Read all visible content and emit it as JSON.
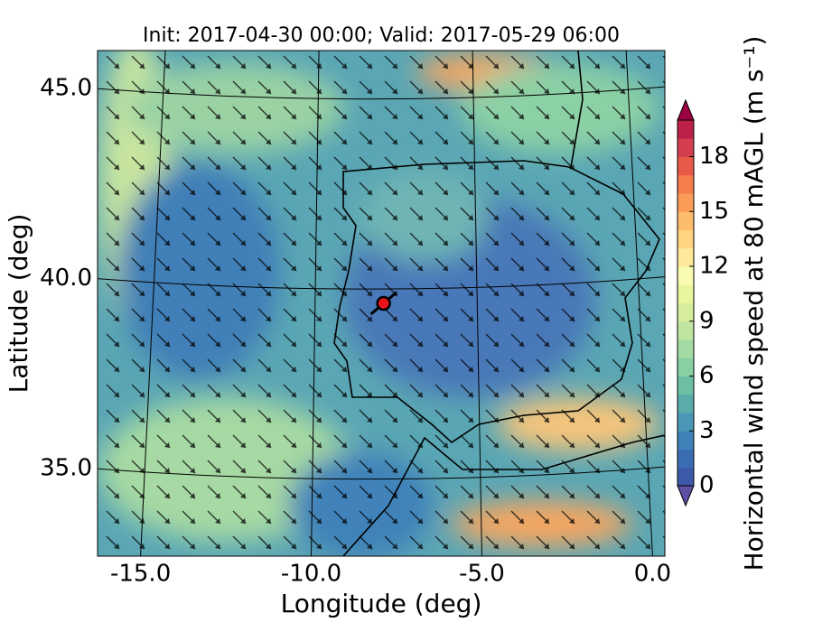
{
  "chart_data": {
    "type": "map",
    "title": "Init: 2017-04-30 00:00; Valid: 2017-05-29 06:00",
    "x_label": "Longitude (deg)",
    "y_label": "Latitude (deg)",
    "xlim": [
      -16.26,
      0.36
    ],
    "ylim": [
      32.7,
      46.0
    ],
    "xticks": [
      {
        "value": -15,
        "label": "-15.0"
      },
      {
        "value": -10,
        "label": "-10.0"
      },
      {
        "value": -5,
        "label": "-5.0"
      },
      {
        "value": 0,
        "label": "0.0"
      }
    ],
    "yticks": [
      {
        "value": 35,
        "label": "35.0"
      },
      {
        "value": 40,
        "label": "40.0"
      },
      {
        "value": 45,
        "label": "45.0"
      }
    ],
    "grid": true,
    "marker": {
      "lon": -7.88,
      "lat": 39.35,
      "color": "#e8141c"
    },
    "colorbar": {
      "label": "Horizontal wind speed at 80 mAGL (m s⁻¹)",
      "lim": [
        0,
        20
      ],
      "ticks": [
        0,
        3,
        6,
        9,
        12,
        15,
        18
      ],
      "colors": [
        "#3d5aa8",
        "#3b6db3",
        "#3f82b9",
        "#4a98b5",
        "#5aacaa",
        "#6dbfa4",
        "#88cfa4",
        "#a4dba4",
        "#bfe5a0",
        "#d6ee9b",
        "#eaf69d",
        "#f8fbb0",
        "#fee99a",
        "#fed481",
        "#fdbb6c",
        "#fa9c58",
        "#f47d4b",
        "#e75948",
        "#d53e4f",
        "#bc2149"
      ],
      "under_color": "#5e4fa2",
      "over_color": "#9e0142"
    }
  }
}
